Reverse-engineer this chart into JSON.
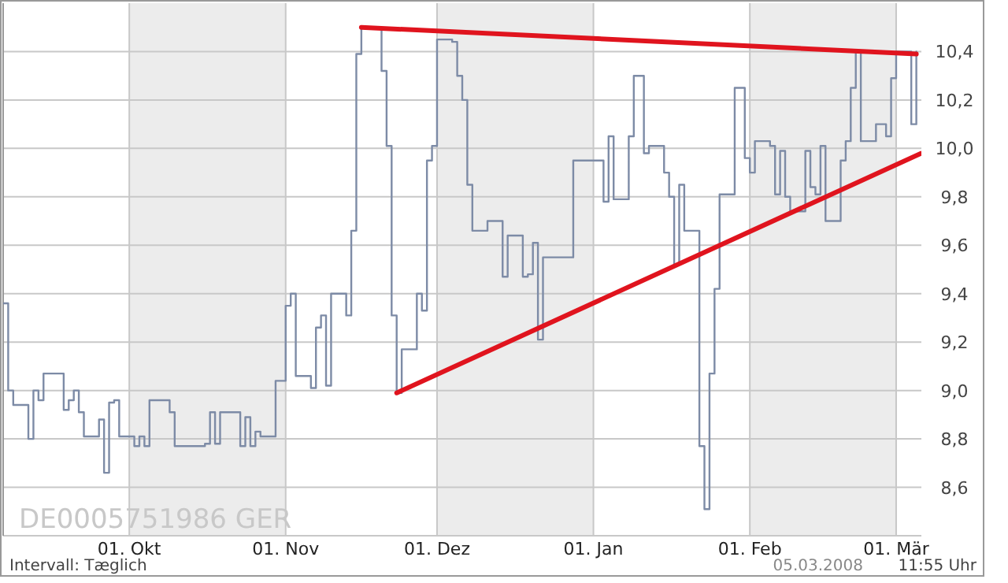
{
  "chart_data": {
    "type": "step",
    "xlim": [
      "2007-09-06",
      "2008-03-06"
    ],
    "ylim": [
      8.4,
      10.6
    ],
    "xticks": [
      {
        "value": "2007-10-01",
        "label": "01. Okt"
      },
      {
        "value": "2007-11-01",
        "label": "01. Nov"
      },
      {
        "value": "2007-12-01",
        "label": "01. Dez"
      },
      {
        "value": "2008-01-01",
        "label": "01. Jan"
      },
      {
        "value": "2008-02-01",
        "label": "01. Feb"
      },
      {
        "value": "2008-03-01",
        "label": "01. Mär"
      }
    ],
    "yticks": [
      {
        "value": 8.6,
        "label": "8,6"
      },
      {
        "value": 8.8,
        "label": "8,8"
      },
      {
        "value": 9.0,
        "label": "9,0"
      },
      {
        "value": 9.2,
        "label": "9,2"
      },
      {
        "value": 9.4,
        "label": "9,4"
      },
      {
        "value": 9.6,
        "label": "9,6"
      },
      {
        "value": 9.8,
        "label": "9,8"
      },
      {
        "value": 10.0,
        "label": "10,0"
      },
      {
        "value": 10.2,
        "label": "10,2"
      },
      {
        "value": 10.4,
        "label": "10,4"
      }
    ],
    "grid": true,
    "bands": [
      {
        "axis": "x",
        "from": "2007-10-01",
        "to": "2007-11-01",
        "color": "#ececec"
      },
      {
        "axis": "x",
        "from": "2007-12-01",
        "to": "2008-01-01",
        "color": "#ececec"
      },
      {
        "axis": "x",
        "from": "2008-02-01",
        "to": "2008-03-01",
        "color": "#ececec"
      }
    ],
    "series": [
      {
        "type": "step",
        "color": "#7d8ba6",
        "x": [
          "2007-09-06",
          "2007-09-07",
          "2007-09-08",
          "2007-09-11",
          "2007-09-12",
          "2007-09-13",
          "2007-09-14",
          "2007-09-18",
          "2007-09-19",
          "2007-09-20",
          "2007-09-21",
          "2007-09-22",
          "2007-09-25",
          "2007-09-26",
          "2007-09-27",
          "2007-09-28",
          "2007-09-29",
          "2007-10-02",
          "2007-10-03",
          "2007-10-04",
          "2007-10-05",
          "2007-10-09",
          "2007-10-10",
          "2007-10-16",
          "2007-10-17",
          "2007-10-18",
          "2007-10-19",
          "2007-10-23",
          "2007-10-24",
          "2007-10-25",
          "2007-10-26",
          "2007-10-27",
          "2007-10-30",
          "2007-11-01",
          "2007-11-02",
          "2007-11-03",
          "2007-11-06",
          "2007-11-07",
          "2007-11-08",
          "2007-11-09",
          "2007-11-10",
          "2007-11-13",
          "2007-11-14",
          "2007-11-15",
          "2007-11-16",
          "2007-11-20",
          "2007-11-21",
          "2007-11-22",
          "2007-11-23",
          "2007-11-24",
          "2007-11-27",
          "2007-11-28",
          "2007-11-29",
          "2007-11-30",
          "2007-12-01",
          "2007-12-04",
          "2007-12-05",
          "2007-12-06",
          "2007-12-07",
          "2007-12-08",
          "2007-12-11",
          "2007-12-14",
          "2007-12-15",
          "2007-12-18",
          "2007-12-19",
          "2007-12-20",
          "2007-12-21",
          "2007-12-22",
          "2007-12-28",
          "2008-01-03",
          "2008-01-04",
          "2008-01-05",
          "2008-01-08",
          "2008-01-09",
          "2008-01-11",
          "2008-01-12",
          "2008-01-15",
          "2008-01-16",
          "2008-01-17",
          "2008-01-18",
          "2008-01-19",
          "2008-01-22",
          "2008-01-23",
          "2008-01-24",
          "2008-01-25",
          "2008-01-26",
          "2008-01-29",
          "2008-01-31",
          "2008-02-01",
          "2008-02-02",
          "2008-02-05",
          "2008-02-06",
          "2008-02-07",
          "2008-02-08",
          "2008-02-09",
          "2008-02-12",
          "2008-02-13",
          "2008-02-14",
          "2008-02-15",
          "2008-02-16",
          "2008-02-19",
          "2008-02-20",
          "2008-02-21",
          "2008-02-22",
          "2008-02-23",
          "2008-02-26",
          "2008-02-28",
          "2008-02-29",
          "2008-03-01",
          "2008-03-04",
          "2008-03-05"
        ],
        "values": [
          9.36,
          9.0,
          8.94,
          8.8,
          9.0,
          8.96,
          9.07,
          8.92,
          8.96,
          9.0,
          8.91,
          8.81,
          8.88,
          8.66,
          8.95,
          8.96,
          8.81,
          8.77,
          8.81,
          8.77,
          8.96,
          8.91,
          8.77,
          8.78,
          8.91,
          8.78,
          8.91,
          8.77,
          8.89,
          8.77,
          8.83,
          8.81,
          9.04,
          9.35,
          9.4,
          9.06,
          9.01,
          9.26,
          9.31,
          9.02,
          9.4,
          9.31,
          9.66,
          10.39,
          10.5,
          10.32,
          10.01,
          9.31,
          8.99,
          9.17,
          9.4,
          9.33,
          9.95,
          10.01,
          10.45,
          10.44,
          10.3,
          10.2,
          9.85,
          9.66,
          9.7,
          9.47,
          9.64,
          9.47,
          9.48,
          9.61,
          9.21,
          9.55,
          9.95,
          9.78,
          10.05,
          9.79,
          10.05,
          10.3,
          9.98,
          10.01,
          9.9,
          9.8,
          9.52,
          9.85,
          9.66,
          8.77,
          8.51,
          9.07,
          9.42,
          9.81,
          10.25,
          9.96,
          9.9,
          10.03,
          10.01,
          9.81,
          9.99,
          9.8,
          9.74,
          9.99,
          9.84,
          9.81,
          10.01,
          9.7,
          9.95,
          10.03,
          10.25,
          10.4,
          10.03,
          10.1,
          10.05,
          10.29,
          10.4,
          10.1,
          10.4
        ]
      },
      {
        "type": "line",
        "color": "#e0141e",
        "x": [
          "2007-11-16",
          "2008-03-05"
        ],
        "values": [
          10.5,
          10.39
        ]
      },
      {
        "type": "line",
        "color": "#e0141e",
        "x": [
          "2007-11-23",
          "2008-03-06"
        ],
        "values": [
          8.99,
          9.98
        ]
      }
    ],
    "annotations": [
      "DE0005751986    GER",
      "Intervall: Tæglich",
      "05.03.2008",
      "11:55 Uhr"
    ]
  }
}
